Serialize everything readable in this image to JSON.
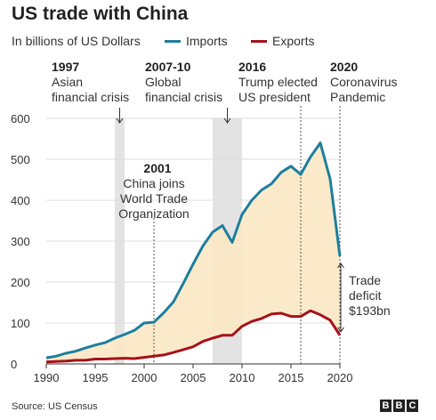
{
  "title": "US trade with China",
  "subtitle": "In billions of US Dollars",
  "legend": [
    {
      "label": "Imports",
      "color": "#1e7e9e"
    },
    {
      "label": "Exports",
      "color": "#a4121a"
    }
  ],
  "source": "Source: US Census",
  "logo": [
    "B",
    "B",
    "C"
  ],
  "chart_data": {
    "type": "line",
    "title": "US trade with China",
    "ylabel": "In billions of US Dollars",
    "ylim": [
      0,
      600
    ],
    "xlim": [
      1990,
      2020
    ],
    "yticks": [
      0,
      100,
      200,
      300,
      400,
      500,
      600
    ],
    "xticks": [
      1990,
      1995,
      2000,
      2005,
      2010,
      2015,
      2020
    ],
    "grid": true,
    "legend_position": "top",
    "x": [
      1990,
      1991,
      1992,
      1993,
      1994,
      1995,
      1996,
      1997,
      1998,
      1999,
      2000,
      2001,
      2002,
      2003,
      2004,
      2005,
      2006,
      2007,
      2008,
      2009,
      2010,
      2011,
      2012,
      2013,
      2014,
      2015,
      2016,
      2017,
      2018,
      2019,
      2020
    ],
    "series": [
      {
        "name": "Imports",
        "color": "#1e7e9e",
        "values": [
          15,
          19,
          26,
          31,
          39,
          46,
          52,
          63,
          72,
          82,
          100,
          102,
          125,
          152,
          197,
          244,
          288,
          322,
          338,
          297,
          365,
          400,
          425,
          440,
          468,
          483,
          463,
          506,
          540,
          452,
          263
        ]
      },
      {
        "name": "Exports",
        "color": "#a4121a",
        "values": [
          5,
          6,
          7,
          9,
          9,
          12,
          12,
          13,
          14,
          13,
          16,
          19,
          22,
          28,
          35,
          42,
          55,
          63,
          70,
          70,
          92,
          104,
          111,
          122,
          124,
          116,
          116,
          130,
          120,
          107,
          70
        ]
      }
    ],
    "shaded_periods": [
      {
        "start": 1997,
        "end": 1998
      },
      {
        "start": 2007,
        "end": 2010
      }
    ],
    "annotations": [
      {
        "year": "1997",
        "text": [
          "Asian",
          "financial crisis"
        ],
        "x": 1997.5
      },
      {
        "year": "2007-10",
        "text": [
          "Global",
          "financial crisis"
        ],
        "x": 2008.5
      },
      {
        "year": "2016",
        "text": [
          "Trump elected",
          "US president"
        ],
        "x": 2016
      },
      {
        "year": "2020",
        "text": [
          "Coronavirus",
          "Pandemic"
        ],
        "x": 2020
      },
      {
        "year": "2001",
        "text": [
          "China joins",
          "World Trade",
          "Organization"
        ],
        "x": 2001
      }
    ],
    "deficit_label": [
      "Trade",
      "deficit",
      "$193bn"
    ]
  }
}
